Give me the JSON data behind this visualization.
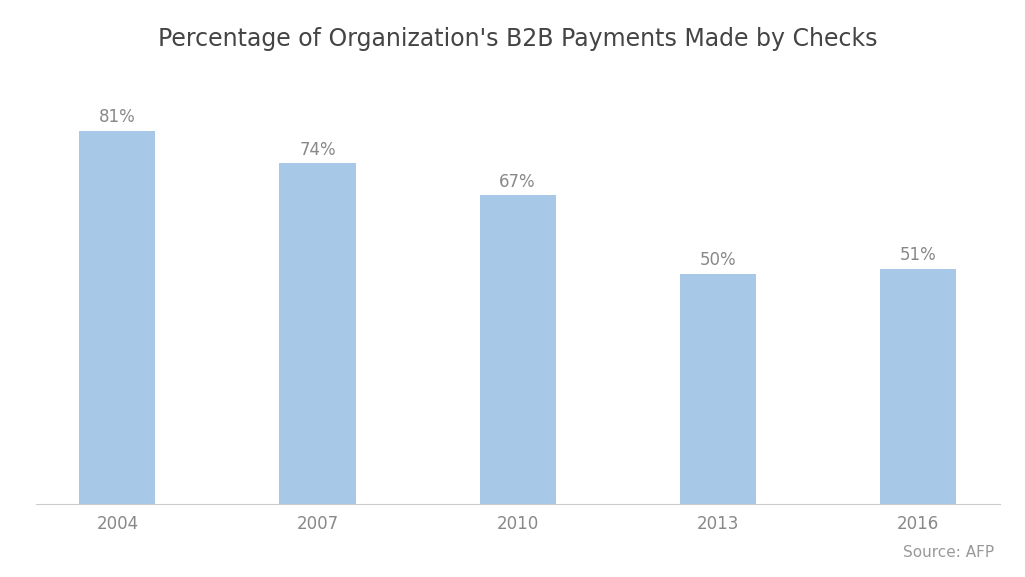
{
  "title": "Percentage of Organization's B2B Payments Made by Checks",
  "categories": [
    "2004",
    "2007",
    "2010",
    "2013",
    "2016"
  ],
  "values": [
    81,
    74,
    67,
    50,
    51
  ],
  "labels": [
    "81%",
    "74%",
    "67%",
    "50%",
    "51%"
  ],
  "bar_color": "#a8c8e8",
  "background_color": "#ffffff",
  "title_fontsize": 17,
  "label_fontsize": 12,
  "tick_fontsize": 12,
  "source_text": "Source: AFP",
  "source_fontsize": 11,
  "ylim": [
    0,
    95
  ],
  "bar_width": 0.38
}
